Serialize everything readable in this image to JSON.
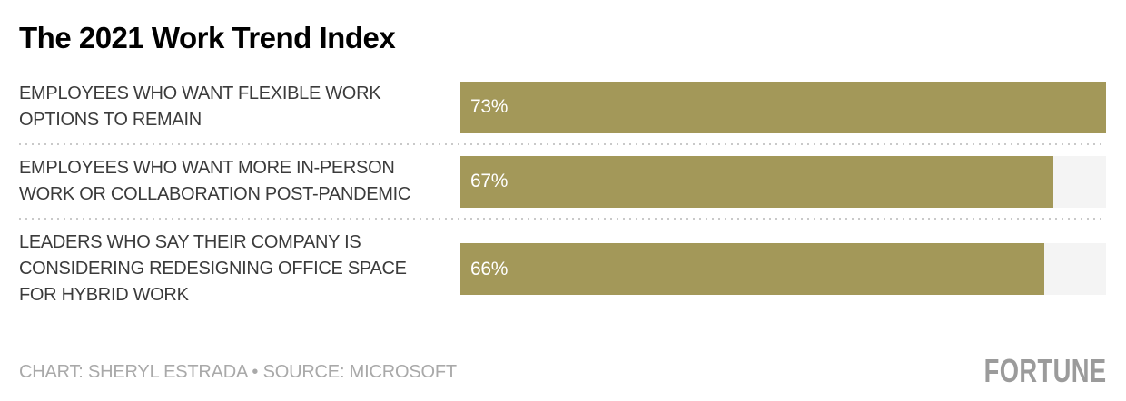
{
  "title": "The 2021 Work Trend Index",
  "colors": {
    "bar_fill": "#a39859",
    "bar_track": "#f4f4f4",
    "label_text": "#3b3b3b",
    "title_text": "#000000",
    "footer_text": "#a9a9a9",
    "logo_text": "#9b9b9b",
    "separator_dots": "#c9c9c9"
  },
  "chart_data": {
    "type": "bar",
    "orientation": "horizontal",
    "title": "The 2021 Work Trend Index",
    "categories": [
      "EMPLOYEES WHO WANT FLEXIBLE WORK OPTIONS TO REMAIN",
      "EMPLOYEES WHO WANT MORE IN-PERSON WORK OR COLLABORATION POST-PANDEMIC",
      "LEADERS WHO SAY THEIR COMPANY IS CONSIDERING REDESIGNING OFFICE SPACE FOR HYBRID WORK"
    ],
    "values": [
      73,
      67,
      66
    ],
    "value_suffix": "%",
    "max_value": 73,
    "grid": false,
    "legend": false,
    "value_labels_inside_bars": true,
    "rows": [
      {
        "label": "EMPLOYEES WHO WANT FLEXIBLE WORK\nOPTIONS TO REMAIN",
        "value": 73,
        "value_label": "73%"
      },
      {
        "label": "EMPLOYEES WHO WANT MORE IN-PERSON\nWORK OR COLLABORATION POST-PANDEMIC",
        "value": 67,
        "value_label": "67%"
      },
      {
        "label": "LEADERS WHO SAY THEIR COMPANY IS\nCONSIDERING REDESIGNING OFFICE SPACE\nFOR HYBRID WORK",
        "value": 66,
        "value_label": "66%"
      }
    ]
  },
  "footer": {
    "credit": "CHART: SHERYL ESTRADA • SOURCE: MICROSOFT",
    "logo": "FORTUNE"
  }
}
